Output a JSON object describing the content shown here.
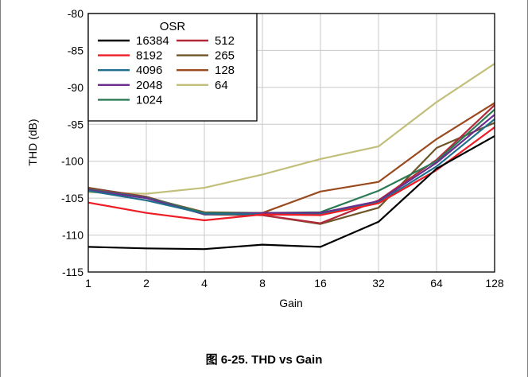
{
  "caption": "图 6-25. THD vs Gain",
  "chart_data": {
    "type": "line",
    "title": "",
    "xlabel": "Gain",
    "ylabel": "THD (dB)",
    "x_scale": "log2",
    "categories": [
      "1",
      "2",
      "4",
      "8",
      "16",
      "32",
      "64",
      "128"
    ],
    "x": [
      1,
      2,
      4,
      8,
      16,
      32,
      64,
      128
    ],
    "ylim": [
      -115,
      -80
    ],
    "yticks": [
      -80,
      -85,
      -90,
      -95,
      -100,
      -105,
      -110,
      -115
    ],
    "grid": true,
    "legend": {
      "title": "OSR",
      "placement": "top-left",
      "columns": 2
    },
    "series": [
      {
        "name": "16384",
        "color": "#000000",
        "values": [
          -111.6,
          -111.8,
          -111.9,
          -111.3,
          -111.6,
          -108.2,
          -101.0,
          -96.6
        ]
      },
      {
        "name": "8192",
        "color": "#ee1c25",
        "values": [
          -105.6,
          -107.0,
          -108.0,
          -107.2,
          -107.3,
          -105.7,
          -101.2,
          -95.4
        ]
      },
      {
        "name": "4096",
        "color": "#1f6e8c",
        "values": [
          -104.0,
          -105.3,
          -107.1,
          -107.2,
          -107.2,
          -105.6,
          -100.7,
          -94.3
        ]
      },
      {
        "name": "2048",
        "color": "#6b2c8f",
        "values": [
          -103.9,
          -105.0,
          -107.2,
          -107.0,
          -107.0,
          -105.4,
          -100.2,
          -93.7
        ]
      },
      {
        "name": "1024",
        "color": "#2a7a55",
        "values": [
          -103.8,
          -104.9,
          -107.0,
          -107.0,
          -106.9,
          -104.0,
          -100.0,
          -93.0
        ]
      },
      {
        "name": "512",
        "color": "#b22a3a",
        "values": [
          -103.7,
          -104.8,
          -107.1,
          -107.3,
          -108.4,
          -105.3,
          -99.8,
          -92.4
        ]
      },
      {
        "name": "265",
        "color": "#6e5528",
        "values": [
          -103.6,
          -104.8,
          -107.2,
          -107.3,
          -108.5,
          -106.3,
          -98.2,
          -94.8
        ]
      },
      {
        "name": "128",
        "color": "#9a4a1e",
        "values": [
          -103.6,
          -104.9,
          -106.9,
          -107.0,
          -104.1,
          -102.8,
          -97.0,
          -92.1
        ]
      },
      {
        "name": "64",
        "color": "#c2bf7a",
        "values": [
          -104.2,
          -104.4,
          -103.6,
          -101.8,
          -99.7,
          -98.0,
          -92.0,
          -86.8
        ]
      }
    ]
  }
}
